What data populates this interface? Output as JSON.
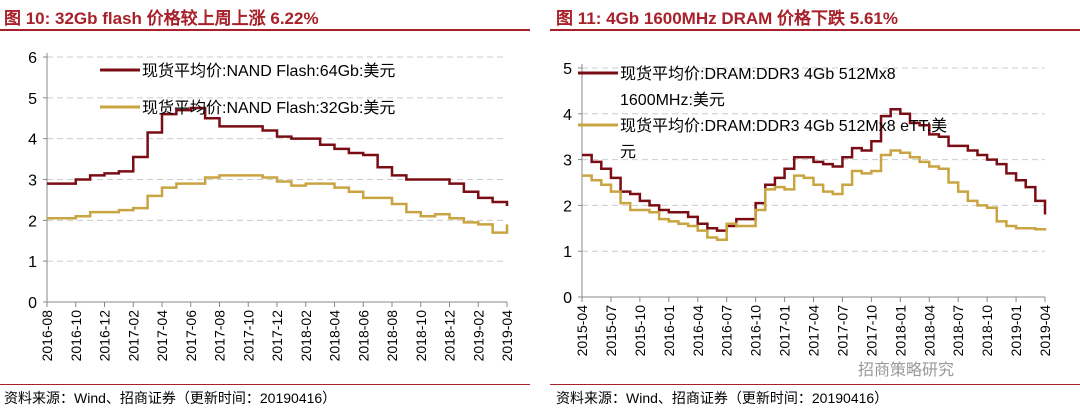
{
  "colors": {
    "title": "#a8202a",
    "s1": "#7a0d14",
    "s2": "#c9a542",
    "grid": "#cccccc"
  },
  "watermark": "招商策略研究",
  "chart_data": [
    {
      "type": "line",
      "title": "图 10:  32Gb flash 价格较上周上涨 6.22%",
      "source": "资料来源：Wind、招商证券（更新时间：20190416）",
      "ylim": [
        0,
        6
      ],
      "yticks": [
        "0",
        "1",
        "2",
        "3",
        "4",
        "5",
        "6"
      ],
      "legend": "top",
      "x": [
        "2016-08",
        "2016-09",
        "2016-10",
        "2016-11",
        "2016-12",
        "2017-01",
        "2017-02",
        "2017-03",
        "2017-04",
        "2017-05",
        "2017-06",
        "2017-07",
        "2017-08",
        "2017-09",
        "2017-10",
        "2017-11",
        "2017-12",
        "2018-01",
        "2018-02",
        "2018-03",
        "2018-04",
        "2018-05",
        "2018-06",
        "2018-07",
        "2018-08",
        "2018-09",
        "2018-10",
        "2018-11",
        "2018-12",
        "2019-01",
        "2019-02",
        "2019-03",
        "2019-04"
      ],
      "xticks": [
        "2016-08",
        "2016-10",
        "2016-12",
        "2017-02",
        "2017-04",
        "2017-06",
        "2017-08",
        "2017-10",
        "2017-12",
        "2018-02",
        "2018-04",
        "2018-06",
        "2018-08",
        "2018-10",
        "2018-12",
        "2019-02",
        "2019-04"
      ],
      "series": [
        {
          "name": "现货平均价:NAND Flash:64Gb:美元",
          "values": [
            2.9,
            2.9,
            3.0,
            3.1,
            3.15,
            3.2,
            3.55,
            4.15,
            4.6,
            4.7,
            4.75,
            4.5,
            4.3,
            4.3,
            4.3,
            4.2,
            4.05,
            4.0,
            4.0,
            3.85,
            3.75,
            3.65,
            3.6,
            3.3,
            3.1,
            3.0,
            3.0,
            3.0,
            2.9,
            2.7,
            2.55,
            2.45,
            2.35
          ]
        },
        {
          "name": "现货平均价:NAND Flash:32Gb:美元",
          "values": [
            2.05,
            2.05,
            2.1,
            2.2,
            2.2,
            2.25,
            2.3,
            2.6,
            2.8,
            2.9,
            2.9,
            3.05,
            3.1,
            3.1,
            3.1,
            3.05,
            2.95,
            2.85,
            2.9,
            2.9,
            2.8,
            2.7,
            2.55,
            2.55,
            2.4,
            2.2,
            2.1,
            2.15,
            2.05,
            1.95,
            1.9,
            1.7,
            1.9
          ]
        }
      ]
    },
    {
      "type": "line",
      "title": "图 11:  4Gb 1600MHz DRAM 价格下跌 5.61%",
      "source": "资料来源：Wind、招商证券（更新时间：20190416）",
      "ylim": [
        0,
        5
      ],
      "yticks": [
        "0",
        "1",
        "2",
        "3",
        "4",
        "5"
      ],
      "legend": "top",
      "x": [
        "2015-04",
        "2015-05",
        "2015-06",
        "2015-07",
        "2015-08",
        "2015-09",
        "2015-10",
        "2015-11",
        "2015-12",
        "2016-01",
        "2016-02",
        "2016-03",
        "2016-04",
        "2016-05",
        "2016-06",
        "2016-07",
        "2016-08",
        "2016-09",
        "2016-10",
        "2016-11",
        "2016-12",
        "2017-01",
        "2017-02",
        "2017-03",
        "2017-04",
        "2017-05",
        "2017-06",
        "2017-07",
        "2017-08",
        "2017-09",
        "2017-10",
        "2017-11",
        "2017-12",
        "2018-01",
        "2018-02",
        "2018-03",
        "2018-04",
        "2018-05",
        "2018-06",
        "2018-07",
        "2018-08",
        "2018-09",
        "2018-10",
        "2018-11",
        "2018-12",
        "2019-01",
        "2019-02",
        "2019-03",
        "2019-04"
      ],
      "xticks": [
        "2015-04",
        "2015-07",
        "2015-10",
        "2016-01",
        "2016-04",
        "2016-07",
        "2016-10",
        "2017-01",
        "2017-04",
        "2017-07",
        "2017-10",
        "2018-01",
        "2018-04",
        "2018-07",
        "2018-10",
        "2019-01",
        "2019-04"
      ],
      "series": [
        {
          "name": "现货平均价:DRAM:DDR3 4Gb 512Mx8 1600MHz:美元",
          "values": [
            3.1,
            2.95,
            2.8,
            2.6,
            2.3,
            2.25,
            2.1,
            2.0,
            1.9,
            1.85,
            1.85,
            1.75,
            1.6,
            1.5,
            1.45,
            1.55,
            1.7,
            1.7,
            2.05,
            2.45,
            2.6,
            2.8,
            3.05,
            3.05,
            2.95,
            2.9,
            2.85,
            3.05,
            3.25,
            3.2,
            3.4,
            3.95,
            4.1,
            4.0,
            3.8,
            3.75,
            3.55,
            3.5,
            3.3,
            3.3,
            3.2,
            3.1,
            3.0,
            2.9,
            2.7,
            2.55,
            2.4,
            2.1,
            1.8
          ]
        },
        {
          "name": "现货平均价:DRAM:DDR3 4Gb 512Mx8 eTT:美元",
          "values": [
            2.65,
            2.55,
            2.45,
            2.3,
            2.05,
            1.9,
            1.9,
            1.85,
            1.7,
            1.65,
            1.6,
            1.55,
            1.45,
            1.3,
            1.25,
            1.6,
            1.55,
            1.55,
            1.9,
            2.35,
            2.4,
            2.35,
            2.65,
            2.6,
            2.45,
            2.3,
            2.25,
            2.45,
            2.75,
            2.7,
            2.75,
            3.1,
            3.2,
            3.15,
            3.05,
            2.95,
            2.85,
            2.8,
            2.5,
            2.3,
            2.1,
            2.0,
            1.95,
            1.65,
            1.55,
            1.5,
            1.5,
            1.48,
            1.45
          ]
        }
      ]
    }
  ]
}
